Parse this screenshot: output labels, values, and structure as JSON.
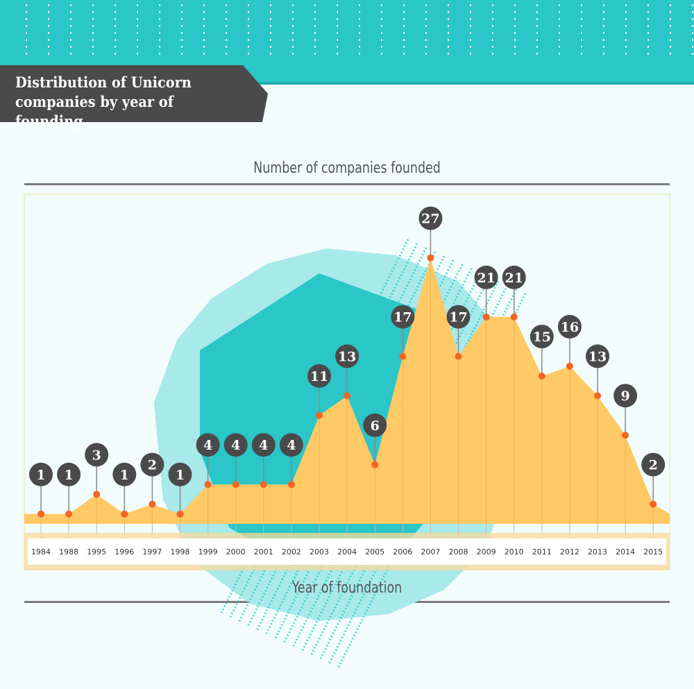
{
  "title_lines": [
    "Distribution of Unicorn",
    "companies by year of founding."
  ],
  "colors": {
    "teal": "#2ac6c8",
    "teal_light": "#a8e9ea",
    "area": "#ffc966",
    "dot": "#f26522",
    "badge": "#4a4a4a",
    "title_box": "#4a4a4a",
    "background": "#f2fcfd"
  },
  "chart_data": {
    "type": "area",
    "title": "Number of companies founded",
    "xlabel": "Year of foundation",
    "ylabel": "",
    "categories": [
      "1984",
      "1988",
      "1995",
      "1996",
      "1997",
      "1998",
      "1999",
      "2000",
      "2001",
      "2002",
      "2003",
      "2004",
      "2005",
      "2006",
      "2007",
      "2008",
      "2009",
      "2010",
      "2011",
      "2012",
      "2013",
      "2014",
      "2015"
    ],
    "values": [
      1,
      1,
      3,
      1,
      2,
      1,
      4,
      4,
      4,
      4,
      11,
      13,
      6,
      17,
      27,
      17,
      21,
      21,
      15,
      16,
      13,
      9,
      2
    ],
    "ylim": [
      0,
      28
    ],
    "grid": true,
    "legend": "none"
  }
}
